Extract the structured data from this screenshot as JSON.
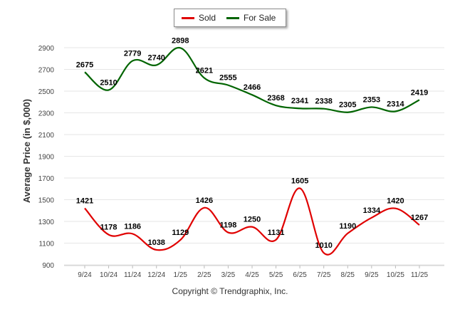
{
  "legend": {
    "sold_label": "Sold",
    "for_sale_label": "For Sale"
  },
  "footer": {
    "copyright": "Copyright © Trendgraphix, Inc."
  },
  "chart_data": {
    "type": "line",
    "title": "",
    "xlabel": "",
    "ylabel": "Average Price (in $,000)",
    "ylim": [
      900,
      2900
    ],
    "yticks": [
      900,
      1100,
      1300,
      1500,
      1700,
      1900,
      2100,
      2300,
      2500,
      2700,
      2900
    ],
    "categories": [
      "9/24",
      "10/24",
      "11/24",
      "12/24",
      "1/25",
      "2/25",
      "3/25",
      "4/25",
      "5/25",
      "6/25",
      "7/25",
      "8/25",
      "9/25",
      "10/25",
      "11/25"
    ],
    "legend_position": "top-center",
    "series": [
      {
        "name": "Sold",
        "color": "#e00000",
        "values": [
          1421,
          1178,
          1186,
          1038,
          1129,
          1426,
          1198,
          1250,
          1131,
          1605,
          1010,
          1190,
          1334,
          1420,
          1267
        ]
      },
      {
        "name": "For Sale",
        "color": "#006400",
        "values": [
          2675,
          2510,
          2779,
          2740,
          2898,
          2621,
          2555,
          2466,
          2368,
          2341,
          2338,
          2305,
          2353,
          2314,
          2419
        ]
      }
    ]
  }
}
